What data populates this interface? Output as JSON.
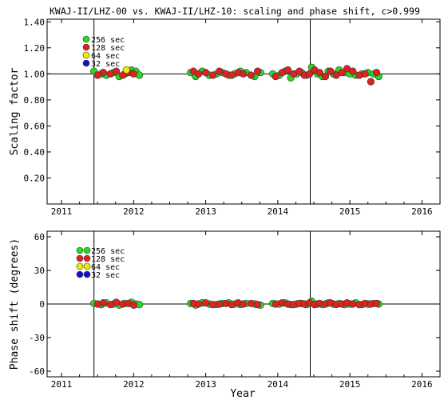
{
  "title": "KWAJ-II/LHZ-00 vs. KWAJ-II/LHZ-10: scaling and phase shift, c>0.999",
  "xlabel": "Year",
  "colors": {
    "green": "#22dd22",
    "red": "#dd2222",
    "yellow": "#eeee00",
    "blue": "#1111cc",
    "outline": "#333333"
  },
  "chart_data": [
    {
      "type": "scatter",
      "ylabel": "Scaling factor",
      "xlim": [
        2010.8,
        2016.25
      ],
      "ylim": [
        0.0,
        1.42
      ],
      "xticks": [
        2011,
        2012,
        2013,
        2014,
        2015,
        2016
      ],
      "yticks": [
        0.2,
        0.4,
        0.6,
        0.8,
        1.0,
        1.2,
        1.4
      ],
      "ytick_labels": [
        "0.20",
        "0.40",
        "0.60",
        "0.80",
        "1.00",
        "1.20",
        "1.40"
      ],
      "reference_line": 1.0,
      "vertical_lines": [
        2011.45,
        2014.45
      ],
      "legend": [
        "256 sec",
        "128 sec",
        "64 sec",
        "32 sec"
      ],
      "legend_placement": "top-left",
      "legend_colors": [
        "green",
        "red",
        "yellow",
        "blue"
      ],
      "series": [
        {
          "name": "256 sec",
          "color": "green",
          "x": [
            2011.45,
            2011.55,
            2011.62,
            2011.72,
            2011.8,
            2011.88,
            2011.97,
            2012.03,
            2012.08,
            2012.79,
            2012.86,
            2012.95,
            2013.05,
            2013.15,
            2013.23,
            2013.32,
            2013.4,
            2013.48,
            2013.56,
            2013.68,
            2013.76,
            2013.93,
            2014.02,
            2014.1,
            2014.18,
            2014.26,
            2014.33,
            2014.4,
            2014.47,
            2014.55,
            2014.62,
            2014.7,
            2014.77,
            2014.85,
            2014.93,
            2015.0,
            2015.08,
            2015.17,
            2015.25,
            2015.33,
            2015.4
          ],
          "y": [
            1.02,
            1.0,
            0.99,
            1.01,
            0.98,
            1.0,
            1.03,
            1.02,
            0.99,
            1.01,
            0.98,
            1.02,
            0.99,
            1.0,
            1.01,
            0.99,
            1.0,
            1.02,
            1.01,
            0.98,
            1.01,
            1.0,
            0.99,
            1.02,
            0.97,
            1.0,
            1.01,
            0.99,
            1.05,
            1.0,
            0.98,
            1.02,
            1.0,
            1.03,
            1.01,
            1.0,
            0.99,
            1.0,
            1.01,
            1.0,
            0.98
          ]
        },
        {
          "name": "128 sec",
          "color": "red",
          "x": [
            2011.5,
            2011.58,
            2011.68,
            2011.76,
            2011.85,
            2011.93,
            2012.0,
            2012.83,
            2012.9,
            2013.0,
            2013.1,
            2013.19,
            2013.28,
            2013.36,
            2013.45,
            2013.52,
            2013.63,
            2013.72,
            2013.97,
            2014.06,
            2014.14,
            2014.22,
            2014.3,
            2014.37,
            2014.44,
            2014.51,
            2014.58,
            2014.66,
            2014.73,
            2014.81,
            2014.89,
            2014.96,
            2015.04,
            2015.13,
            2015.21,
            2015.29,
            2015.37
          ],
          "y": [
            0.99,
            1.01,
            1.0,
            1.02,
            0.99,
            1.01,
            1.0,
            1.02,
            1.0,
            1.01,
            0.99,
            1.02,
            1.0,
            0.99,
            1.01,
            1.0,
            0.99,
            1.02,
            0.98,
            1.01,
            1.03,
            1.0,
            1.02,
            0.99,
            1.0,
            1.03,
            1.01,
            0.98,
            1.02,
            0.99,
            1.01,
            1.04,
            1.02,
            0.99,
            1.0,
            0.94,
            1.01
          ]
        },
        {
          "name": "64 sec",
          "color": "yellow",
          "x": [
            2011.9
          ],
          "y": [
            1.03
          ]
        },
        {
          "name": "32 sec",
          "color": "blue",
          "x": [],
          "y": []
        }
      ]
    },
    {
      "type": "scatter",
      "ylabel": "Phase shift (degrees)",
      "xlim": [
        2010.8,
        2016.25
      ],
      "ylim": [
        -65,
        65
      ],
      "xticks": [
        2011,
        2012,
        2013,
        2014,
        2015,
        2016
      ],
      "yticks": [
        -60,
        -30,
        0,
        30,
        60
      ],
      "ytick_labels": [
        "-60",
        "-30",
        "0",
        "30",
        "60"
      ],
      "reference_line": 0,
      "vertical_lines": [
        2011.45,
        2014.45
      ],
      "legend": [
        "256 sec",
        "128 sec",
        "64 sec",
        "32 sec"
      ],
      "legend_placement": "top-left",
      "legend_colors": [
        "green",
        "red",
        "yellow",
        "blue"
      ],
      "series": [
        {
          "name": "256 sec",
          "color": "green",
          "x": [
            2011.45,
            2011.55,
            2011.62,
            2011.72,
            2011.8,
            2011.88,
            2011.97,
            2012.03,
            2012.08,
            2012.79,
            2012.86,
            2012.95,
            2013.05,
            2013.15,
            2013.23,
            2013.32,
            2013.4,
            2013.48,
            2013.56,
            2013.68,
            2013.76,
            2013.93,
            2014.02,
            2014.1,
            2014.18,
            2014.26,
            2014.33,
            2014.4,
            2014.47,
            2014.55,
            2014.62,
            2014.7,
            2014.77,
            2014.85,
            2014.93,
            2015.0,
            2015.08,
            2015.17,
            2015.25,
            2015.33,
            2015.4
          ],
          "y": [
            0.5,
            -0.5,
            1.0,
            0,
            -1.0,
            0.5,
            1.5,
            0,
            -0.5,
            0.5,
            -1.0,
            1.0,
            0,
            -0.5,
            0.5,
            1.0,
            0,
            -0.5,
            0.5,
            0,
            -1.0,
            0.5,
            0,
            1.0,
            -0.5,
            0,
            0.5,
            -0.5,
            2.5,
            0,
            -0.5,
            1.0,
            0,
            0.5,
            -0.5,
            0,
            1.0,
            -0.5,
            0,
            0.5,
            0
          ]
        },
        {
          "name": "128 sec",
          "color": "red",
          "x": [
            2011.5,
            2011.58,
            2011.68,
            2011.76,
            2011.85,
            2011.93,
            2012.0,
            2012.83,
            2012.9,
            2013.0,
            2013.1,
            2013.19,
            2013.28,
            2013.36,
            2013.45,
            2013.52,
            2013.63,
            2013.72,
            2013.97,
            2014.06,
            2014.14,
            2014.22,
            2014.3,
            2014.37,
            2014.44,
            2014.51,
            2014.58,
            2014.66,
            2014.73,
            2014.81,
            2014.89,
            2014.96,
            2015.04,
            2015.13,
            2015.21,
            2015.29,
            2015.37
          ],
          "y": [
            0,
            1.0,
            -0.5,
            1.5,
            0,
            0.5,
            -1.0,
            0.5,
            0,
            1.0,
            -0.5,
            0,
            0.5,
            -0.5,
            1.0,
            0,
            0.5,
            -0.5,
            0,
            1.0,
            0,
            -0.5,
            0.5,
            0,
            1.0,
            -0.5,
            0.5,
            0,
            1.0,
            -0.5,
            0,
            1.0,
            0,
            -0.5,
            0.5,
            0,
            0.5
          ]
        },
        {
          "name": "64 sec",
          "color": "yellow",
          "x": [],
          "y": []
        },
        {
          "name": "32 sec",
          "color": "blue",
          "x": [],
          "y": []
        }
      ]
    }
  ]
}
